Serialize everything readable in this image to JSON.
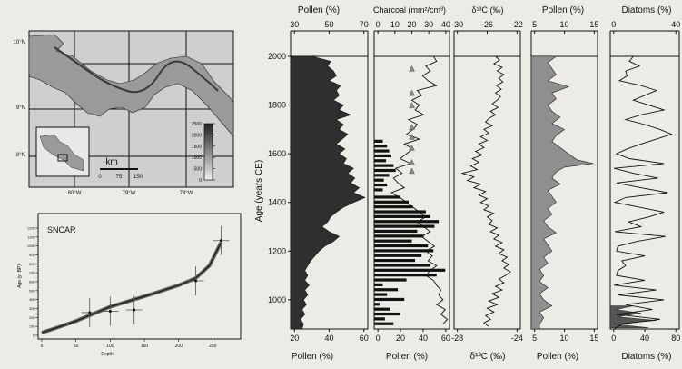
{
  "map": {
    "lat_labels": [
      "10°N",
      "9°N",
      "8°N"
    ],
    "lon_labels": [
      "80°W",
      "79°W",
      "78°W"
    ],
    "scale_unit": "km",
    "scale_ticks": [
      "0",
      "75",
      "150"
    ],
    "elev_ticks": [
      "0",
      "500",
      "1000",
      "1500",
      "2000",
      "2500"
    ],
    "colors": {
      "sea": "#cfcfcf",
      "land": "#9a9a9a",
      "frame": "#111111"
    }
  },
  "chart_data": [
    {
      "type": "scatter",
      "title": "SNCAR",
      "xlabel": "Depth",
      "ylabel": "Age (yr BP)",
      "xlim": [
        0,
        280
      ],
      "ylim": [
        0,
        1200
      ],
      "x_ticks": [
        "0",
        "50",
        "100",
        "150",
        "200",
        "250"
      ],
      "y_ticks": [
        "0",
        "100",
        "200",
        "300",
        "400",
        "500",
        "600",
        "700",
        "800",
        "900",
        "1000",
        "1100",
        "1200"
      ],
      "age_model_line": {
        "x": [
          0,
          20,
          50,
          75,
          100,
          130,
          160,
          200,
          225,
          245,
          262
        ],
        "y": [
          30,
          80,
          160,
          240,
          320,
          390,
          460,
          560,
          640,
          780,
          1040
        ]
      },
      "dates": [
        {
          "x": 70,
          "y": 255
        },
        {
          "x": 100,
          "y": 270
        },
        {
          "x": 135,
          "y": 285
        },
        {
          "x": 225,
          "y": 610
        },
        {
          "x": 262,
          "y": 1060
        }
      ]
    },
    {
      "type": "area",
      "top_label": "Pollen (%)",
      "bottom_label": "Pollen (%)",
      "ylabel": "Age (years CE)",
      "y_ticks": [
        "2000",
        "1800",
        "1600",
        "1400",
        "1200",
        "1000"
      ],
      "top_ticks": [
        "30",
        "50",
        "70"
      ],
      "bottom_ticks": [
        "20",
        "40",
        "60"
      ],
      "xlim": [
        18,
        72
      ],
      "ylim": [
        880,
        2000
      ],
      "color": "#2f2f2f",
      "series": [
        {
          "y": [
            2000,
            1980,
            1960,
            1940,
            1920,
            1900,
            1880,
            1860,
            1840,
            1820,
            1800,
            1780,
            1760,
            1740,
            1720,
            1700,
            1680,
            1660,
            1640,
            1620,
            1600,
            1580,
            1560,
            1540,
            1520,
            1500,
            1480,
            1460,
            1440,
            1420,
            1400,
            1380,
            1360,
            1340,
            1320,
            1300,
            1280,
            1260,
            1240,
            1220,
            1200,
            1180,
            1160,
            1140,
            1120,
            1100,
            1080,
            1060,
            1040,
            1020,
            1000,
            980,
            960,
            940,
            920,
            900,
            880
          ],
          "values": [
            33,
            46,
            44,
            48,
            50,
            45,
            53,
            50,
            52,
            48,
            55,
            52,
            60,
            50,
            55,
            52,
            58,
            54,
            50,
            56,
            52,
            57,
            55,
            62,
            58,
            63,
            60,
            66,
            62,
            70,
            62,
            55,
            50,
            46,
            44,
            40,
            45,
            52,
            48,
            42,
            38,
            35,
            32,
            30,
            28,
            30,
            28,
            31,
            28,
            30,
            27,
            29,
            26,
            28,
            25,
            27,
            26
          ]
        }
      ]
    },
    {
      "type": "bar",
      "top_label": "Charcoal (mm²/cm³)",
      "bottom_label": "Pollen (%)",
      "top_ticks": [
        "0",
        "10",
        "20",
        "30",
        "40"
      ],
      "bottom_ticks": [
        "0",
        "20",
        "40",
        "60"
      ],
      "xlim": [
        0,
        70
      ],
      "ylim": [
        880,
        2000
      ],
      "bars": {
        "y": [
          1650,
          1630,
          1610,
          1590,
          1570,
          1550,
          1530,
          1510,
          1490,
          1470,
          1450,
          1420,
          1400,
          1380,
          1360,
          1340,
          1320,
          1300,
          1280,
          1260,
          1240,
          1220,
          1200,
          1180,
          1160,
          1140,
          1120,
          1100,
          1080,
          1060,
          1040,
          1020,
          1000,
          980,
          960,
          940,
          920,
          900
        ],
        "values": [
          8,
          12,
          14,
          16,
          11,
          18,
          20,
          14,
          9,
          12,
          8,
          24,
          32,
          36,
          48,
          52,
          60,
          56,
          40,
          46,
          35,
          50,
          55,
          44,
          38,
          52,
          66,
          58,
          30,
          8,
          22,
          12,
          28,
          5,
          15,
          24,
          10,
          18
        ]
      },
      "pollen_line": {
        "y": [
          2000,
          1980,
          1960,
          1940,
          1920,
          1900,
          1880,
          1860,
          1840,
          1820,
          1800,
          1780,
          1760,
          1740,
          1720,
          1700,
          1680,
          1660,
          1640,
          1620,
          1600,
          1580,
          1560,
          1540,
          1520,
          1500,
          1480,
          1460,
          1440,
          1420,
          1400,
          1380,
          1360,
          1340,
          1320,
          1300,
          1280,
          1260,
          1240,
          1220,
          1200,
          1180,
          1160,
          1140,
          1120,
          1100,
          1080,
          1060,
          1040,
          1020,
          1000,
          980,
          960,
          940,
          920,
          900
        ],
        "values": [
          55,
          58,
          48,
          52,
          45,
          50,
          58,
          40,
          44,
          35,
          42,
          38,
          46,
          32,
          40,
          36,
          30,
          42,
          28,
          36,
          30,
          24,
          34,
          20,
          26,
          18,
          22,
          28,
          16,
          24,
          30,
          36,
          42,
          48,
          40,
          46,
          52,
          44,
          50,
          56,
          48,
          54,
          50,
          58,
          52,
          48,
          55,
          58,
          62,
          60,
          64,
          58,
          66,
          62,
          68,
          64
        ]
      },
      "markers": {
        "y": [
          1950,
          1850,
          1800,
          1710,
          1670,
          1625,
          1565,
          1530
        ],
        "value": 35
      }
    },
    {
      "type": "line",
      "top_label": "δ¹³C (‰)",
      "bottom_label": "δ¹³C (‰)",
      "top_ticks": [
        "-30",
        "-26",
        "-22"
      ],
      "bottom_ticks": [
        "-28",
        "-24"
      ],
      "xlim": [
        -30,
        -22
      ],
      "ylim": [
        880,
        2000
      ],
      "series": [
        {
          "y": [
            2000,
            1985,
            1970,
            1955,
            1940,
            1925,
            1910,
            1895,
            1880,
            1865,
            1850,
            1835,
            1820,
            1805,
            1790,
            1775,
            1760,
            1745,
            1730,
            1715,
            1700,
            1685,
            1670,
            1655,
            1640,
            1625,
            1610,
            1595,
            1580,
            1565,
            1550,
            1535,
            1520,
            1505,
            1490,
            1475,
            1460,
            1445,
            1430,
            1415,
            1400,
            1385,
            1370,
            1355,
            1340,
            1325,
            1310,
            1295,
            1280,
            1265,
            1250,
            1235,
            1220,
            1205,
            1190,
            1175,
            1160,
            1145,
            1130,
            1115,
            1100,
            1085,
            1070,
            1055,
            1040,
            1025,
            1010,
            995,
            980,
            965,
            950,
            935,
            920,
            905,
            890
          ],
          "values": [
            -25.0,
            -24.5,
            -25.2,
            -24.2,
            -24.8,
            -24.0,
            -24.6,
            -24.1,
            -24.9,
            -24.3,
            -25.0,
            -24.4,
            -24.8,
            -25.4,
            -24.7,
            -25.6,
            -25.0,
            -25.8,
            -26.2,
            -25.4,
            -26.4,
            -25.8,
            -26.8,
            -26.0,
            -27.0,
            -26.4,
            -27.4,
            -26.6,
            -27.8,
            -27.0,
            -28.0,
            -27.2,
            -29.0,
            -27.6,
            -28.4,
            -26.8,
            -27.6,
            -26.2,
            -27.0,
            -26.0,
            -26.8,
            -25.8,
            -26.4,
            -25.2,
            -26.0,
            -25.4,
            -25.8,
            -24.8,
            -25.6,
            -24.6,
            -25.2,
            -24.2,
            -25.0,
            -24.0,
            -24.6,
            -23.6,
            -24.2,
            -23.4,
            -24.0,
            -23.2,
            -23.8,
            -24.6,
            -24.0,
            -25.0,
            -24.2,
            -25.4,
            -24.6,
            -25.8,
            -24.8,
            -26.0,
            -25.2,
            -26.2,
            -25.6,
            -26.4,
            -25.8
          ]
        }
      ]
    },
    {
      "type": "area",
      "top_label": "Pollen (%)",
      "bottom_label": "Pollen (%)",
      "top_ticks": [
        "5",
        "10",
        "15"
      ],
      "bottom_ticks": [
        "5",
        "10",
        "15"
      ],
      "xlim": [
        0,
        16
      ],
      "ylim": [
        880,
        2000
      ],
      "color": "#8f8f8f",
      "series": [
        {
          "y": [
            2000,
            1975,
            1950,
            1925,
            1900,
            1875,
            1850,
            1825,
            1800,
            1775,
            1750,
            1725,
            1700,
            1675,
            1650,
            1625,
            1600,
            1575,
            1560,
            1545,
            1525,
            1500,
            1475,
            1450,
            1425,
            1400,
            1375,
            1350,
            1325,
            1300,
            1275,
            1250,
            1225,
            1200,
            1175,
            1150,
            1125,
            1100,
            1075,
            1050,
            1025,
            1000,
            975,
            950,
            925,
            900,
            880
          ],
          "values": [
            6,
            4,
            5,
            6,
            4,
            9,
            5,
            6,
            4,
            5,
            7,
            5,
            8,
            6,
            5,
            7,
            9,
            11,
            15,
            8,
            6,
            5,
            7,
            4,
            5,
            6,
            4,
            5,
            3,
            4,
            6,
            3,
            4,
            5,
            3,
            4,
            2,
            3,
            2,
            4,
            2,
            3,
            5,
            2,
            3,
            2,
            2
          ]
        }
      ]
    },
    {
      "type": "area",
      "top_label": "Diatoms (%)",
      "bottom_label": "Diatoms (%)",
      "top_ticks": [
        "0",
        "40"
      ],
      "bottom_ticks": [
        "0",
        "40",
        "80"
      ],
      "xlim": [
        0,
        90
      ],
      "ylim": [
        880,
        2000
      ],
      "color": "#555555",
      "series": [
        {
          "y": [
            2000,
            1980,
            1960,
            1940,
            1920,
            1900,
            1880,
            1860,
            1840,
            1820,
            1800,
            1780,
            1760,
            1740,
            1720,
            1700,
            1680,
            1660,
            1640,
            1620,
            1600,
            1580,
            1560,
            1540,
            1520,
            1500,
            1480,
            1460,
            1440,
            1420,
            1400,
            1380,
            1360,
            1340,
            1320,
            1300,
            1280,
            1260,
            1240,
            1220,
            1200,
            1180,
            1160,
            1140,
            1120,
            1100,
            1080,
            1060,
            1040,
            1020,
            1000,
            980,
            960,
            940,
            920,
            900,
            880
          ],
          "values": [
            30,
            25,
            38,
            20,
            22,
            12,
            40,
            60,
            45,
            30,
            50,
            70,
            40,
            20,
            45,
            65,
            80,
            60,
            40,
            22,
            8,
            25,
            70,
            5,
            30,
            62,
            8,
            40,
            75,
            20,
            6,
            38,
            70,
            50,
            24,
            40,
            6,
            72,
            35,
            10,
            8,
            45,
            15,
            20,
            10,
            8,
            45,
            5,
            60,
            10,
            70,
            20,
            55,
            8,
            65,
            15,
            5
          ]
        }
      ],
      "shaded": {
        "y": [
          975,
          960,
          945,
          930,
          915,
          900,
          885
        ],
        "values": [
          30,
          8,
          40,
          10,
          60,
          5,
          50
        ]
      }
    }
  ]
}
